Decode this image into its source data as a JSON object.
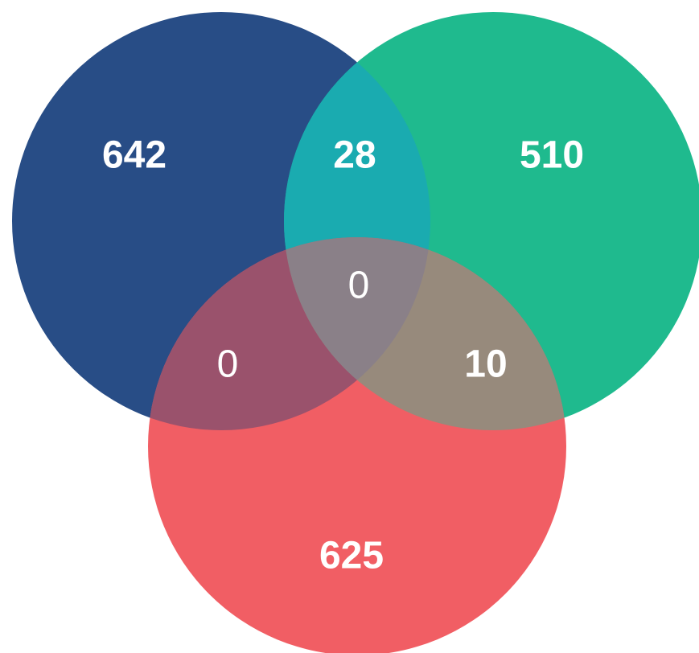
{
  "venn": {
    "colors": {
      "set_a": "#284D86",
      "set_b": "#1FBA8E",
      "set_c": "#F15E64",
      "ab": "#1AABB0",
      "ac": "#9A526C",
      "bc": "#978A7C",
      "abc": "#8A8088",
      "label": "#FFFFFF"
    },
    "counts": {
      "a_only": "642",
      "b_only": "510",
      "c_only": "625",
      "ab_only": "28",
      "ac_only": "0",
      "bc_only": "10",
      "abc": "0"
    }
  }
}
